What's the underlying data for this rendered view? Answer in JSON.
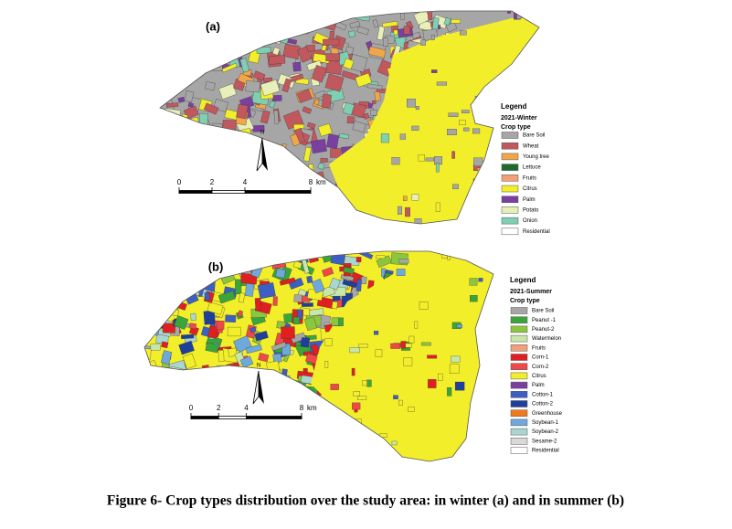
{
  "panels": [
    {
      "label": "(a)",
      "legend": {
        "title": "Legend",
        "subtitle": "2021-Winter",
        "heading": "Crop type",
        "items": [
          {
            "label": "Bare Soil",
            "color": "#a6a6a6"
          },
          {
            "label": "Wheat",
            "color": "#c0585e"
          },
          {
            "label": "Young tree",
            "color": "#f0a64a"
          },
          {
            "label": "Lettuce",
            "color": "#1f6b2e"
          },
          {
            "label": "Fruits",
            "color": "#f2a07a"
          },
          {
            "label": "Citrus",
            "color": "#f2ee2a"
          },
          {
            "label": "Palm",
            "color": "#7b3fa0"
          },
          {
            "label": "Potato",
            "color": "#e8efb8"
          },
          {
            "label": "Onion",
            "color": "#7fcfb2"
          },
          {
            "label": "Residential",
            "color": "#ffffff"
          }
        ]
      },
      "scale": {
        "ticks": [
          0,
          2,
          4,
          8
        ],
        "unit": "km"
      },
      "north": "N"
    },
    {
      "label": "(b)",
      "legend": {
        "title": "Legend",
        "subtitle": "2021-Summer",
        "heading": "Crop type",
        "items": [
          {
            "label": "Bare Soil",
            "color": "#a6a6a6"
          },
          {
            "label": "Peanut -1",
            "color": "#3aa63a"
          },
          {
            "label": "Peanut-2",
            "color": "#8cc63f"
          },
          {
            "label": "Watermelon",
            "color": "#c8e6a8"
          },
          {
            "label": "Fruits",
            "color": "#f2a07a"
          },
          {
            "label": "Corn-1",
            "color": "#e02020"
          },
          {
            "label": "Corn-2",
            "color": "#f04848"
          },
          {
            "label": "Citrus",
            "color": "#f2ee2a"
          },
          {
            "label": "Palm",
            "color": "#7b3fa0"
          },
          {
            "label": "Cotton-1",
            "color": "#3d5fc4"
          },
          {
            "label": "Cotton-2",
            "color": "#1f3f9a"
          },
          {
            "label": "Greenhouse",
            "color": "#f07a1a"
          },
          {
            "label": "Soybean-1",
            "color": "#6fa8dc"
          },
          {
            "label": "Soybean-2",
            "color": "#a9d6d0"
          },
          {
            "label": "Sesame-2",
            "color": "#d9d9d9"
          },
          {
            "label": "Residential",
            "color": "#ffffff"
          }
        ]
      },
      "scale": {
        "ticks": [
          0,
          2,
          4,
          8
        ],
        "unit": "km"
      },
      "north": "N"
    }
  ],
  "caption": "Figure 6- Crop types distribution over the study area: in winter (a) and in summer (b)"
}
